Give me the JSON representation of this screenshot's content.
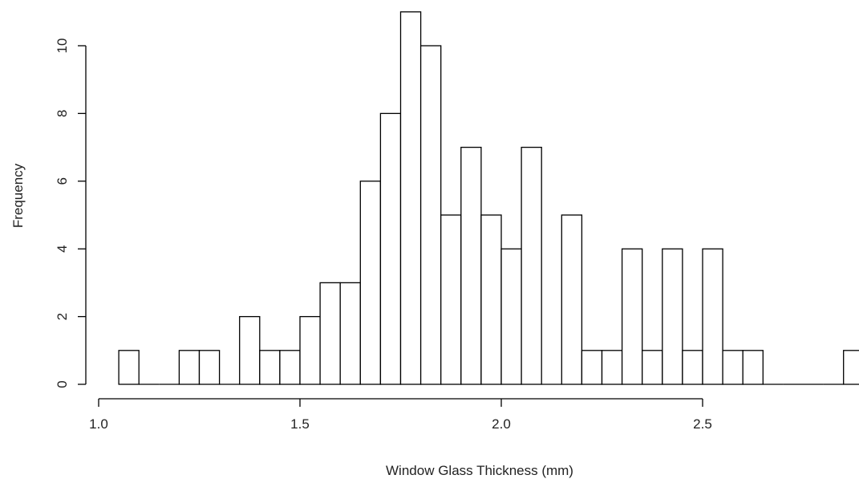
{
  "chart_data": {
    "type": "bar",
    "title": "",
    "xlabel": "Window Glass Thickness (mm)",
    "ylabel": "Frequency",
    "bin_width": 0.05,
    "bin_starts": [
      1.05,
      1.1,
      1.15,
      1.2,
      1.25,
      1.3,
      1.35,
      1.4,
      1.45,
      1.5,
      1.55,
      1.6,
      1.65,
      1.7,
      1.75,
      1.8,
      1.85,
      1.9,
      1.95,
      2.0,
      2.05,
      2.1,
      2.15,
      2.2,
      2.25,
      2.3,
      2.35,
      2.4,
      2.45,
      2.5,
      2.55,
      2.6,
      2.65,
      2.7,
      2.75,
      2.8,
      2.85
    ],
    "values": [
      1,
      0,
      0,
      1,
      1,
      0,
      2,
      1,
      1,
      2,
      3,
      3,
      6,
      8,
      11,
      10,
      5,
      7,
      5,
      4,
      7,
      0,
      5,
      1,
      1,
      4,
      1,
      4,
      1,
      4,
      1,
      1,
      0,
      0,
      0,
      0,
      1
    ],
    "xlim": [
      1.0,
      2.9
    ],
    "ylim": [
      0,
      11
    ],
    "x_ticks": [
      1.0,
      1.5,
      2.0,
      2.5
    ],
    "x_tick_labels": [
      "1.0",
      "1.5",
      "2.0",
      "2.5"
    ],
    "y_ticks": [
      0,
      2,
      4,
      6,
      8,
      10
    ],
    "y_tick_labels": [
      "0",
      "2",
      "4",
      "6",
      "8",
      "10"
    ],
    "grid": false,
    "legend": "none"
  }
}
